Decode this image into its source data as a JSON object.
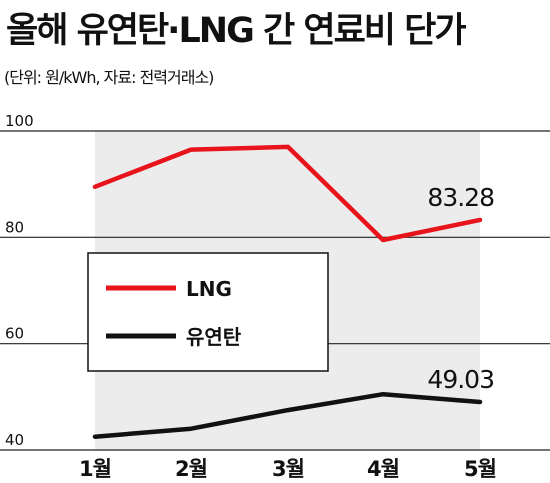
{
  "title": "올해 유연탄·LNG 간 연료비 단가",
  "subtitle": "(단위: 원/kWh, 자료: 전력거래소)",
  "colors": {
    "lng": "#e8141c",
    "coal": "#111111",
    "band": "#ececec",
    "grid": "#222222"
  },
  "chart_data": {
    "type": "line",
    "title": "올해 유연탄·LNG 간 연료비 단가",
    "subtitle": "(단위: 원/kWh, 자료: 전력거래소)",
    "categories": [
      "1월",
      "2월",
      "3월",
      "4월",
      "5월"
    ],
    "ylim": [
      40,
      100
    ],
    "yticks": [
      "100",
      "80",
      "60",
      "40"
    ],
    "series": [
      {
        "name": "LNG",
        "values": [
          89.5,
          96.5,
          97.0,
          79.5,
          83.28
        ],
        "end_label": "83.28"
      },
      {
        "name": "유연탄",
        "values": [
          42.5,
          44.0,
          47.5,
          50.5,
          49.03
        ],
        "end_label": "49.03"
      }
    ],
    "legend_position": "center-left"
  }
}
